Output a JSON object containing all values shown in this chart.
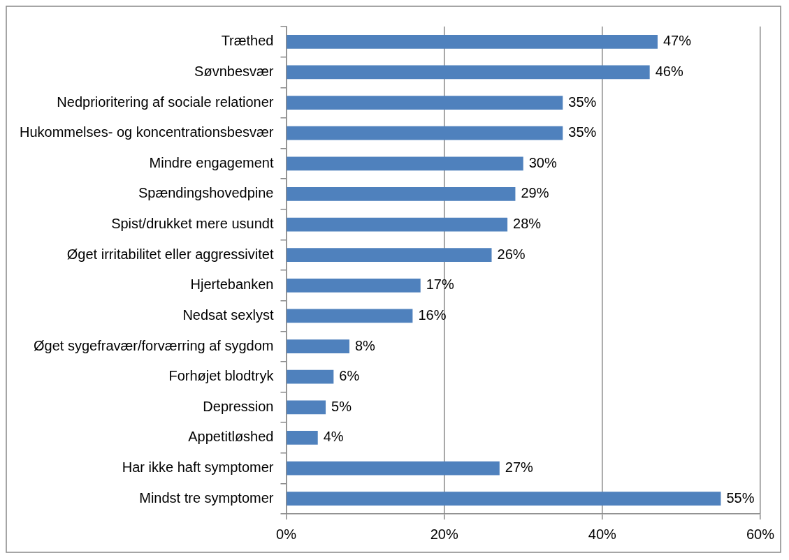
{
  "chart_data": {
    "type": "bar",
    "orientation": "horizontal",
    "categories": [
      "Træthed",
      "Søvnbesvær",
      "Nedprioritering af sociale relationer",
      "Hukommelses- og koncentrationsbesvær",
      "Mindre engagement",
      "Spændingshovedpine",
      "Spist/drukket mere usundt",
      "Øget irritabilitet eller aggressivitet",
      "Hjertebanken",
      "Nedsat sexlyst",
      "Øget sygefravær/forværring af sygdom",
      "Forhøjet blodtryk",
      "Depression",
      "Appetitløshed",
      "Har ikke haft symptomer",
      "Mindst tre symptomer"
    ],
    "values": [
      47,
      46,
      35,
      35,
      30,
      29,
      28,
      26,
      17,
      16,
      8,
      6,
      5,
      4,
      27,
      55
    ],
    "value_labels": [
      "47%",
      "46%",
      "35%",
      "35%",
      "30%",
      "29%",
      "28%",
      "26%",
      "17%",
      "16%",
      "8%",
      "6%",
      "5%",
      "4%",
      "27%",
      "55%"
    ],
    "color": "#4f81bd",
    "xlim": [
      0,
      60
    ],
    "xticks": [
      {
        "value": 0,
        "label": "0%"
      },
      {
        "value": 20,
        "label": "20%"
      },
      {
        "value": 40,
        "label": "40%"
      },
      {
        "value": 60,
        "label": "60%"
      }
    ],
    "grid": "x",
    "legend": false
  }
}
